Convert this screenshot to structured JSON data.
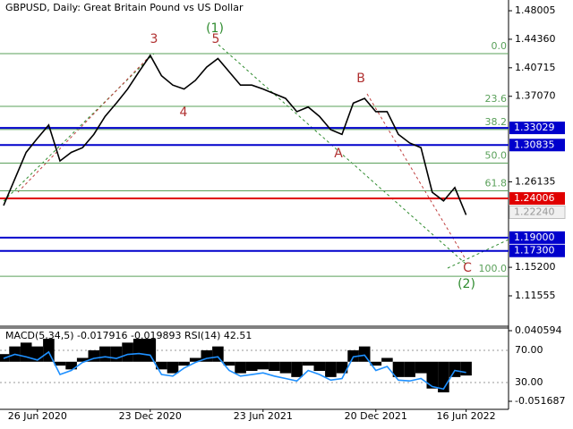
{
  "chart_data": [
    {
      "type": "line",
      "title": "GBPUSD, Daily:  Great Britain Pound vs US Dollar",
      "categories": [
        null,
        null,
        null,
        "26 Jun 2020",
        null,
        null,
        null,
        null,
        null,
        null,
        null,
        null,
        null,
        "23 Dec 2020",
        null,
        null,
        null,
        null,
        null,
        null,
        null,
        null,
        null,
        "23 Jun 2021",
        null,
        null,
        null,
        null,
        null,
        null,
        null,
        null,
        null,
        "20 Dec 2021",
        null,
        null,
        null,
        null,
        null,
        null,
        null,
        "16 Jun 2022"
      ],
      "series": [
        {
          "color": "#000000",
          "values": [
            1.231,
            1.265,
            1.299,
            1.317,
            1.334,
            1.288,
            1.299,
            1.305,
            1.322,
            1.345,
            1.362,
            1.38,
            1.402,
            1.423,
            1.397,
            1.385,
            1.38,
            1.391,
            1.408,
            1.419,
            1.402,
            1.385,
            1.385,
            1.38,
            1.374,
            1.368,
            1.351,
            1.357,
            1.345,
            1.328,
            1.322,
            1.362,
            1.368,
            1.351,
            1.351,
            1.322,
            1.311,
            1.305,
            1.248,
            1.237,
            1.254,
            1.219
          ]
        }
      ],
      "ylim": [
        1.0767,
        1.4938
      ],
      "yticks": [
        1.48005,
        {
          "value": 1.4436,
          "label": "1.44360"
        },
        1.40715,
        {
          "value": 1.3707,
          "label": "1.37070"
        },
        1.26135,
        {
          "value": 1.152,
          "label": "1.15200"
        },
        1.11555
      ],
      "levels": [
        {
          "value": 1.33029,
          "label": "1.33029",
          "color": "#0000cc"
        },
        {
          "value": 1.30835,
          "label": "1.30835",
          "color": "#0000cc"
        },
        {
          "value": 1.24006,
          "label": "1.24006",
          "color": "#e00000"
        },
        {
          "value": 1.19,
          "label": "1.19000",
          "color": "#0000cc"
        },
        {
          "value": 1.173,
          "label": "1.17300",
          "color": "#0000cc"
        }
      ],
      "current_price": {
        "value": 1.2224,
        "label": "1.22240"
      },
      "fibonacci_color": "#5aa05a",
      "fibonacci": [
        {
          "value": 1.4252,
          "label": "0.0"
        },
        {
          "value": 1.3578,
          "label": "23.6"
        },
        {
          "value": 1.3283,
          "label": "38.2"
        },
        {
          "value": 1.2852,
          "label": "50.0"
        },
        {
          "value": 1.2498,
          "label": "61.8"
        },
        {
          "value": 1.1406,
          "label": "100.0"
        }
      ],
      "annotations": [
        {
          "text": "3",
          "color": "#b03030"
        },
        {
          "text": "(1)",
          "color": "#2e8b2e"
        },
        {
          "text": "5",
          "color": "#b03030"
        },
        {
          "text": "4",
          "color": "#b03030"
        },
        {
          "text": "A",
          "color": "#b03030"
        },
        {
          "text": "B",
          "color": "#b03030"
        },
        {
          "text": "C",
          "color": "#b03030"
        },
        {
          "text": "(2)",
          "color": "#2e8b2e"
        }
      ]
    },
    {
      "type": "macd",
      "title": "MACD(5,34,5) -0.017916 -0.019893 RSI(14) 42.51",
      "series": [
        {
          "color": "#000000",
          "values": [
            0.01,
            0.02,
            0.025,
            0.02,
            0.03,
            -0.005,
            -0.01,
            0.005,
            0.015,
            0.02,
            0.02,
            0.025,
            0.03,
            0.03,
            -0.01,
            -0.015,
            -0.005,
            0.005,
            0.015,
            0.02,
            -0.005,
            -0.015,
            -0.012,
            -0.01,
            -0.012,
            -0.015,
            -0.02,
            -0.005,
            -0.012,
            -0.02,
            -0.015,
            0.015,
            0.02,
            -0.005,
            0.005,
            -0.02,
            -0.02,
            -0.015,
            -0.035,
            -0.04,
            -0.02,
            -0.018
          ]
        },
        {
          "color": "#1e90ff",
          "axis": "y2",
          "values": [
            60,
            65,
            62,
            58,
            68,
            40,
            45,
            55,
            60,
            62,
            60,
            65,
            66,
            64,
            40,
            38,
            48,
            55,
            60,
            62,
            45,
            38,
            40,
            42,
            38,
            35,
            32,
            45,
            40,
            33,
            35,
            62,
            64,
            45,
            50,
            33,
            32,
            35,
            25,
            22,
            45,
            42.51
          ]
        }
      ],
      "ylim": [
        -0.0622,
        0.04527
      ],
      "yticks": [
        0.040594,
        -0.051687
      ],
      "y2lim": [
        -3.3,
        98.9
      ],
      "y2ticks": [
        {
          "value": 70,
          "label": "70.00"
        },
        {
          "value": 30,
          "label": "30.00"
        }
      ]
    }
  ]
}
